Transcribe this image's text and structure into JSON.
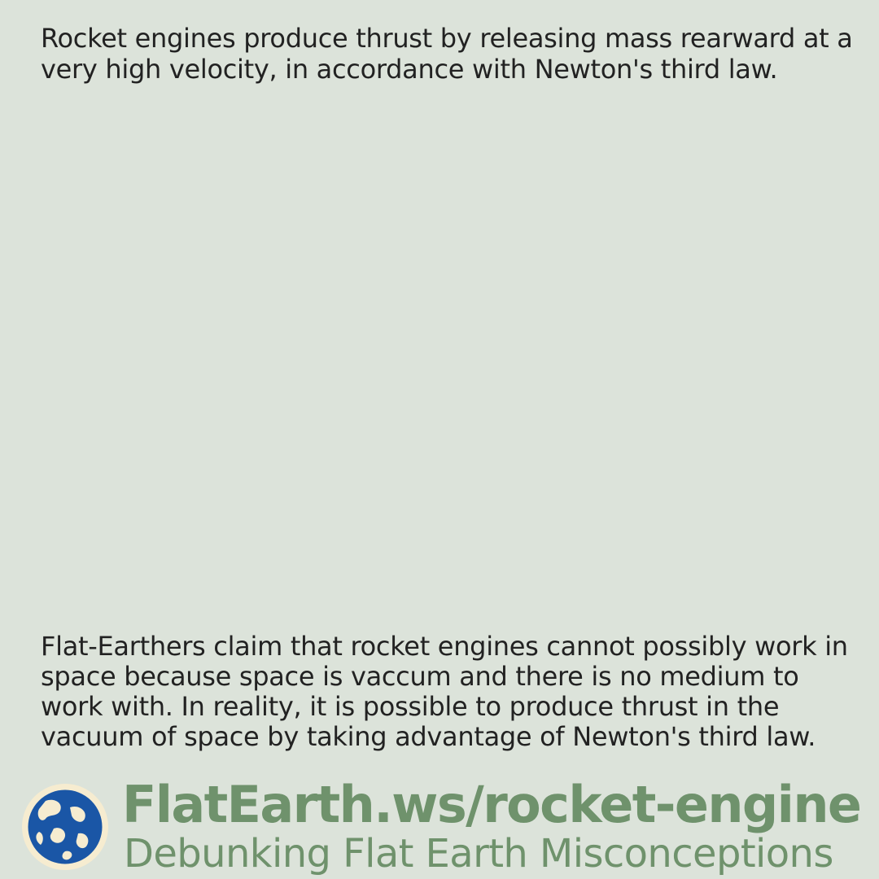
{
  "top_text": "Rocket engines produce thrust by releasing mass rearward at a very high velocity, in accordance with Newton's third law.",
  "bottom_text": "Flat-Earthers claim that rocket engines cannot possibly work in space because space is vaccum and there is no medium to work with. In reality, it is possible to produce thrust in the vacuum of space by taking advantage of Newton's third law.",
  "brand": {
    "url": "FlatEarth.ws/rocket-engine",
    "tagline": "Debunking Flat Earth Misconceptions",
    "logo_icon": "globe-logo-icon"
  },
  "colors": {
    "background": "#dce3da",
    "text": "#222222",
    "brand_green": "#6f926c",
    "globe_blue": "#1a56a6",
    "globe_cream": "#f6ecd0"
  }
}
